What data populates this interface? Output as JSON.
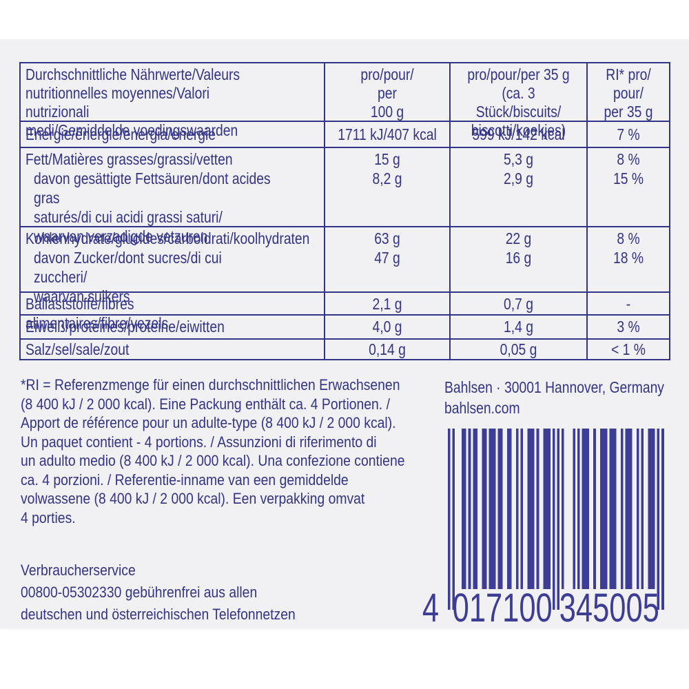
{
  "colors": {
    "ink": "#333388",
    "barcode_bars": "#3d3d96",
    "package_bg": "#f1f1f4",
    "page_bg": "#ffffff"
  },
  "nutrition_table": {
    "title": "Durchschnittliche Nährwerte/Valeurs\nnutritionnelles moyennes/Valori nutrizionali\nmedi/Gemiddelde voedingswaarden",
    "columns": {
      "per_100g": "pro/pour/\nper\n100 g",
      "per_35g": "pro/pour/per 35 g\n(ca. 3 Stück/biscuits/\nbiscotti/koekjes)",
      "ri": "RI* pro/\npour/\nper 35 g"
    },
    "rows": [
      {
        "label": "Energie/énergie/energia/energie",
        "per_100g": "1711 kJ/407 kcal",
        "per_35g": "599 kJ/142 kcal",
        "ri": "7 %"
      },
      {
        "label": "Fett/Matières grasses/grassi/vetten",
        "per_100g": "15 g",
        "per_35g": "5,3 g",
        "ri": "8 %",
        "sub_label": "davon gesättigte Fettsäuren/dont acides gras\nsaturés/di cui acidi grassi saturi/\nwaarvan verzadigde vetzuren",
        "sub_per_100g": "8,2 g",
        "sub_per_35g": "2,9 g",
        "sub_ri": "15 %"
      },
      {
        "label": "Kohlenhydrate/glucides/carboidrati/koolhydraten",
        "per_100g": "63 g",
        "per_35g": "22 g",
        "ri": "8 %",
        "sub_label": "davon Zucker/dont sucres/di cui zuccheri/\nwaarvan suikers",
        "sub_per_100g": "47 g",
        "sub_per_35g": "16 g",
        "sub_ri": "18 %"
      },
      {
        "label": "Ballaststoffe/fibres alimentaires/fibre/vezels",
        "per_100g": "2,1 g",
        "per_35g": "0,7 g",
        "ri": "-"
      },
      {
        "label": "Eiweiß/protéines/proteine/eiwitten",
        "per_100g": "4,0 g",
        "per_35g": "1,4 g",
        "ri": "3 %"
      },
      {
        "label": "Salz/sel/sale/zout",
        "per_100g": "0,14 g",
        "per_35g": "0,05 g",
        "ri": "< 1 %"
      }
    ]
  },
  "footnote": "*RI = Referenzmenge für einen durchschnittlichen Erwachsenen\n(8 400 kJ / 2 000 kcal). Eine Packung enthält ca. 4 Portionen. /\nApport de référence pour un adulte-type (8 400 kJ / 2 000 kcal).\nUn paquet contient - 4 portions. / Assunzioni di riferimento di\nun adulto medio (8 400 kJ / 2 000 kcal). Una confezione contiene\nca. 4 porzioni. / Referentie-inname van een gemiddelde\nvolwassene (8 400 kJ / 2 000 kcal). Een verpakking omvat\n4 porties.",
  "manufacturer": "Bahlsen · 30001 Hannover, Germany\nbahlsen.com",
  "consumer_service": "Verbraucherservice\n00800-05302330 gebührenfrei aus allen\ndeutschen und österreichischen Telefonnetzen",
  "barcode": {
    "digits": "4017100345005",
    "groups": [
      "4",
      "017100",
      "345005"
    ]
  }
}
